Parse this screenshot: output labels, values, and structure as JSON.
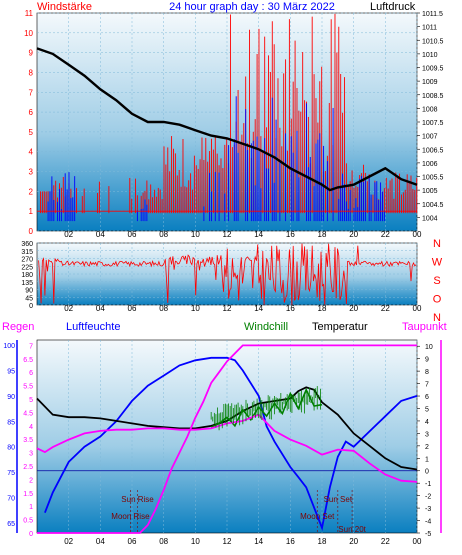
{
  "header": {
    "left_label": "Windstärke",
    "title": "24 hour graph day : 30 März 2022",
    "right_label": "Luftdruck"
  },
  "legend": {
    "regen": "Regen",
    "luftfeuchte": "Luftfeuchte",
    "windchill": "Windchill",
    "temperatur": "Temperatur",
    "taupunkt": "Taupunkt"
  },
  "colors": {
    "red": "#ff0000",
    "blue": "#0000ff",
    "black": "#000000",
    "green": "#008000",
    "magenta": "#ff00ff",
    "panel_top": "#f2f8fb",
    "panel_bottom": "#0b7fc0"
  },
  "events": [
    {
      "label": "Sun Rise",
      "hour": 6.35
    },
    {
      "label": "Moon Rise",
      "hour": 5.9
    },
    {
      "label": "Moon Set",
      "hour": 17.7
    },
    {
      "label": "Sun Set",
      "hour": 19.0
    },
    {
      "label": "Sun 20t",
      "hour": 19.9
    }
  ],
  "chart_data": [
    {
      "id": "wind-pressure",
      "type": "line",
      "x_ticks": [
        "02",
        "04",
        "06",
        "08",
        "10",
        "12",
        "14",
        "16",
        "18",
        "20",
        "22",
        "00"
      ],
      "y_left": {
        "label": "Windstärke",
        "range": [
          0,
          11
        ],
        "ticks": [
          0,
          1,
          2,
          3,
          4,
          5,
          6,
          7,
          8,
          9,
          10,
          11
        ]
      },
      "y_right": {
        "label": "Luftdruck",
        "range": [
          1003.5,
          1011.5
        ],
        "ticks": [
          "1004",
          "1004.5",
          "1005",
          "1005.5",
          "1006",
          "1006.5",
          "1007",
          "1007.5",
          "1008",
          "1008.5",
          "1009",
          "1009.5",
          "1010",
          "1010.5",
          "1011",
          "1011.5"
        ]
      },
      "grid": true,
      "series": [
        {
          "name": "Luftdruck",
          "axis": "right",
          "color": "#000000",
          "points": [
            [
              0.0,
              1010.2
            ],
            [
              1.0,
              1010.0
            ],
            [
              2.0,
              1009.6
            ],
            [
              3.0,
              1009.2
            ],
            [
              4.0,
              1008.7
            ],
            [
              5.0,
              1008.3
            ],
            [
              6.0,
              1007.8
            ],
            [
              7.0,
              1007.5
            ],
            [
              8.0,
              1007.5
            ],
            [
              9.0,
              1007.4
            ],
            [
              10.0,
              1007.2
            ],
            [
              11.0,
              1007.0
            ],
            [
              12.0,
              1006.9
            ],
            [
              13.0,
              1006.7
            ],
            [
              14.0,
              1006.5
            ],
            [
              15.0,
              1006.2
            ],
            [
              16.0,
              1005.8
            ],
            [
              17.0,
              1005.5
            ],
            [
              18.0,
              1005.2
            ],
            [
              18.5,
              1005.0
            ],
            [
              19.0,
              1005.1
            ],
            [
              20.0,
              1005.2
            ],
            [
              21.0,
              1005.5
            ],
            [
              22.0,
              1005.8
            ],
            [
              23.0,
              1005.4
            ],
            [
              24.0,
              1005.2
            ]
          ]
        }
      ]
    },
    {
      "id": "wind-direction",
      "type": "line",
      "x_ticks": [
        "02",
        "04",
        "06",
        "08",
        "10",
        "12",
        "14",
        "16",
        "18",
        "20",
        "22",
        "00"
      ],
      "y_left": {
        "ticks": [
          "0",
          "45",
          "90",
          "135",
          "180",
          "225",
          "270",
          "315",
          "360"
        ],
        "range": [
          0,
          360
        ]
      },
      "y_right": {
        "ticks": [
          "N",
          "W",
          "S",
          "O",
          "N"
        ]
      },
      "grid": true,
      "series": [
        {
          "name": "Windrichtung",
          "color": "#ff0000",
          "points": [
            [
              0.0,
              240
            ],
            [
              0.5,
              60
            ],
            [
              1.0,
              255
            ],
            [
              1.5,
              270
            ],
            [
              2.0,
              230
            ],
            [
              3.0,
              230
            ],
            [
              4.0,
              230
            ],
            [
              5.0,
              230
            ],
            [
              6.0,
              230
            ],
            [
              7.0,
              230
            ],
            [
              8.0,
              240
            ],
            [
              8.5,
              150
            ],
            [
              9.0,
              260
            ],
            [
              9.5,
              230
            ],
            [
              10.0,
              270
            ],
            [
              10.5,
              120
            ],
            [
              11.0,
              270
            ],
            [
              11.5,
              80
            ],
            [
              12.0,
              250
            ],
            [
              12.5,
              30
            ],
            [
              13.0,
              280
            ],
            [
              13.5,
              60
            ],
            [
              14.0,
              290
            ],
            [
              14.5,
              20
            ],
            [
              15.0,
              300
            ],
            [
              15.5,
              40
            ],
            [
              16.0,
              290
            ],
            [
              16.5,
              10
            ],
            [
              17.0,
              300
            ],
            [
              17.5,
              30
            ],
            [
              18.0,
              280
            ],
            [
              18.5,
              20
            ],
            [
              19.0,
              270
            ],
            [
              19.5,
              60
            ],
            [
              20.0,
              250
            ],
            [
              21.0,
              240
            ],
            [
              21.5,
              120
            ],
            [
              22.0,
              270
            ],
            [
              22.5,
              240
            ],
            [
              23.0,
              260
            ],
            [
              23.5,
              30
            ],
            [
              24.0,
              250
            ]
          ]
        }
      ]
    },
    {
      "id": "humidity-temperature",
      "type": "line",
      "x_ticks": [
        "02",
        "04",
        "06",
        "08",
        "10",
        "12",
        "14",
        "16",
        "18",
        "20",
        "22",
        "00"
      ],
      "y_left": {
        "ticks": [
          "65",
          "70",
          "75",
          "80",
          "85",
          "90",
          "95",
          "100"
        ],
        "range": [
          63,
          101
        ]
      },
      "y_left2": {
        "ticks": [
          "0",
          "0.5",
          "1",
          "1.5",
          "2",
          "2.5",
          "3",
          "3.5",
          "4",
          "4.5",
          "5",
          "5.5",
          "6",
          "6.5",
          "7"
        ],
        "range": [
          0,
          7.2
        ]
      },
      "y_right": {
        "ticks": [
          "-5",
          "-4",
          "-3",
          "-2",
          "-1",
          "0",
          "1",
          "2",
          "3",
          "4",
          "5",
          "6",
          "7",
          "8",
          "9",
          "10"
        ],
        "range": [
          -5,
          10.5
        ]
      },
      "series": [
        {
          "name": "Luftfeuchte",
          "axis": "left",
          "color": "#0000ff",
          "points": [
            [
              0.5,
              67
            ],
            [
              1.0,
              71
            ],
            [
              1.5,
              74
            ],
            [
              2.0,
              77
            ],
            [
              3.0,
              80
            ],
            [
              4.0,
              82
            ],
            [
              5.0,
              85
            ],
            [
              6.0,
              89
            ],
            [
              7.0,
              92
            ],
            [
              8.0,
              94
            ],
            [
              9.0,
              96
            ],
            [
              10.0,
              97
            ],
            [
              11.0,
              97.5
            ],
            [
              12.0,
              97.5
            ],
            [
              12.5,
              97
            ],
            [
              13.0,
              95
            ],
            [
              14.0,
              90
            ],
            [
              14.5,
              84
            ],
            [
              15.0,
              81
            ],
            [
              16.0,
              76
            ],
            [
              16.5,
              74
            ],
            [
              17.0,
              72
            ],
            [
              17.5,
              68
            ],
            [
              18.0,
              64
            ],
            [
              18.5,
              72
            ],
            [
              19.0,
              78
            ],
            [
              19.5,
              81
            ],
            [
              20.0,
              80
            ],
            [
              21.0,
              83
            ],
            [
              22.0,
              86
            ],
            [
              23.0,
              89
            ],
            [
              24.0,
              90
            ]
          ]
        },
        {
          "name": "Temperatur",
          "axis": "right",
          "color": "#000000",
          "points": [
            [
              0.0,
              5.8
            ],
            [
              1.0,
              4.5
            ],
            [
              2.0,
              4.3
            ],
            [
              3.0,
              4.3
            ],
            [
              4.0,
              4.2
            ],
            [
              5.0,
              4.0
            ],
            [
              6.0,
              3.8
            ],
            [
              7.0,
              3.6
            ],
            [
              8.0,
              3.5
            ],
            [
              9.0,
              3.4
            ],
            [
              10.0,
              3.4
            ],
            [
              11.0,
              3.6
            ],
            [
              12.0,
              4.0
            ],
            [
              13.0,
              4.8
            ],
            [
              14.0,
              5.4
            ],
            [
              15.0,
              5.6
            ],
            [
              16.0,
              5.8
            ],
            [
              16.5,
              6.4
            ],
            [
              17.0,
              6.7
            ],
            [
              17.5,
              6.5
            ],
            [
              18.0,
              5.5
            ],
            [
              19.0,
              4.5
            ],
            [
              20.0,
              3.0
            ],
            [
              21.0,
              2.0
            ],
            [
              22.0,
              1.0
            ],
            [
              23.0,
              0.3
            ],
            [
              24.0,
              0.1
            ]
          ]
        },
        {
          "name": "Windchill",
          "axis": "right",
          "color": "#008000",
          "points": [
            [
              11.0,
              3.5
            ],
            [
              11.5,
              3.8
            ],
            [
              12.0,
              4.3
            ],
            [
              12.5,
              3.6
            ],
            [
              13.0,
              4.9
            ],
            [
              13.5,
              4.1
            ],
            [
              14.0,
              5.1
            ],
            [
              14.5,
              4.4
            ],
            [
              15.0,
              5.4
            ],
            [
              15.5,
              4.6
            ],
            [
              16.0,
              6.2
            ],
            [
              16.5,
              5.0
            ],
            [
              17.0,
              6.5
            ],
            [
              17.5,
              5.2
            ],
            [
              18.0,
              5.3
            ]
          ]
        },
        {
          "name": "Taupunkt",
          "axis": "right",
          "color": "#ff00ff",
          "points": [
            [
              0.0,
              1.8
            ],
            [
              0.5,
              1.5
            ],
            [
              1.0,
              1.9
            ],
            [
              2.0,
              2.5
            ],
            [
              3.0,
              3.0
            ],
            [
              4.0,
              3.2
            ],
            [
              5.0,
              3.3
            ],
            [
              6.0,
              3.3
            ],
            [
              7.0,
              3.4
            ],
            [
              8.0,
              3.4
            ],
            [
              9.0,
              3.3
            ],
            [
              10.0,
              3.3
            ],
            [
              11.0,
              3.4
            ],
            [
              12.0,
              3.8
            ],
            [
              13.0,
              4.0
            ],
            [
              14.0,
              4.5
            ],
            [
              15.0,
              3.2
            ],
            [
              16.0,
              2.5
            ],
            [
              17.0,
              2.0
            ],
            [
              18.0,
              1.3
            ],
            [
              19.0,
              1.7
            ],
            [
              20.0,
              1.6
            ],
            [
              21.0,
              0.6
            ],
            [
              22.0,
              -0.3
            ],
            [
              23.0,
              -0.8
            ],
            [
              24.0,
              -0.9
            ]
          ]
        },
        {
          "name": "Regen",
          "axis": "left2",
          "color": "#ff00ff",
          "points": [
            [
              0.0,
              0.0
            ],
            [
              6.5,
              0.0
            ],
            [
              7.0,
              0.3
            ],
            [
              7.5,
              0.9
            ],
            [
              8.0,
              1.6
            ],
            [
              8.5,
              2.4
            ],
            [
              9.0,
              3.0
            ],
            [
              9.5,
              3.6
            ],
            [
              10.0,
              4.3
            ],
            [
              10.5,
              4.9
            ],
            [
              11.0,
              5.6
            ],
            [
              11.5,
              6.0
            ],
            [
              12.0,
              6.4
            ],
            [
              12.5,
              6.7
            ],
            [
              13.0,
              7.0
            ],
            [
              24.0,
              7.0
            ]
          ]
        }
      ]
    }
  ]
}
